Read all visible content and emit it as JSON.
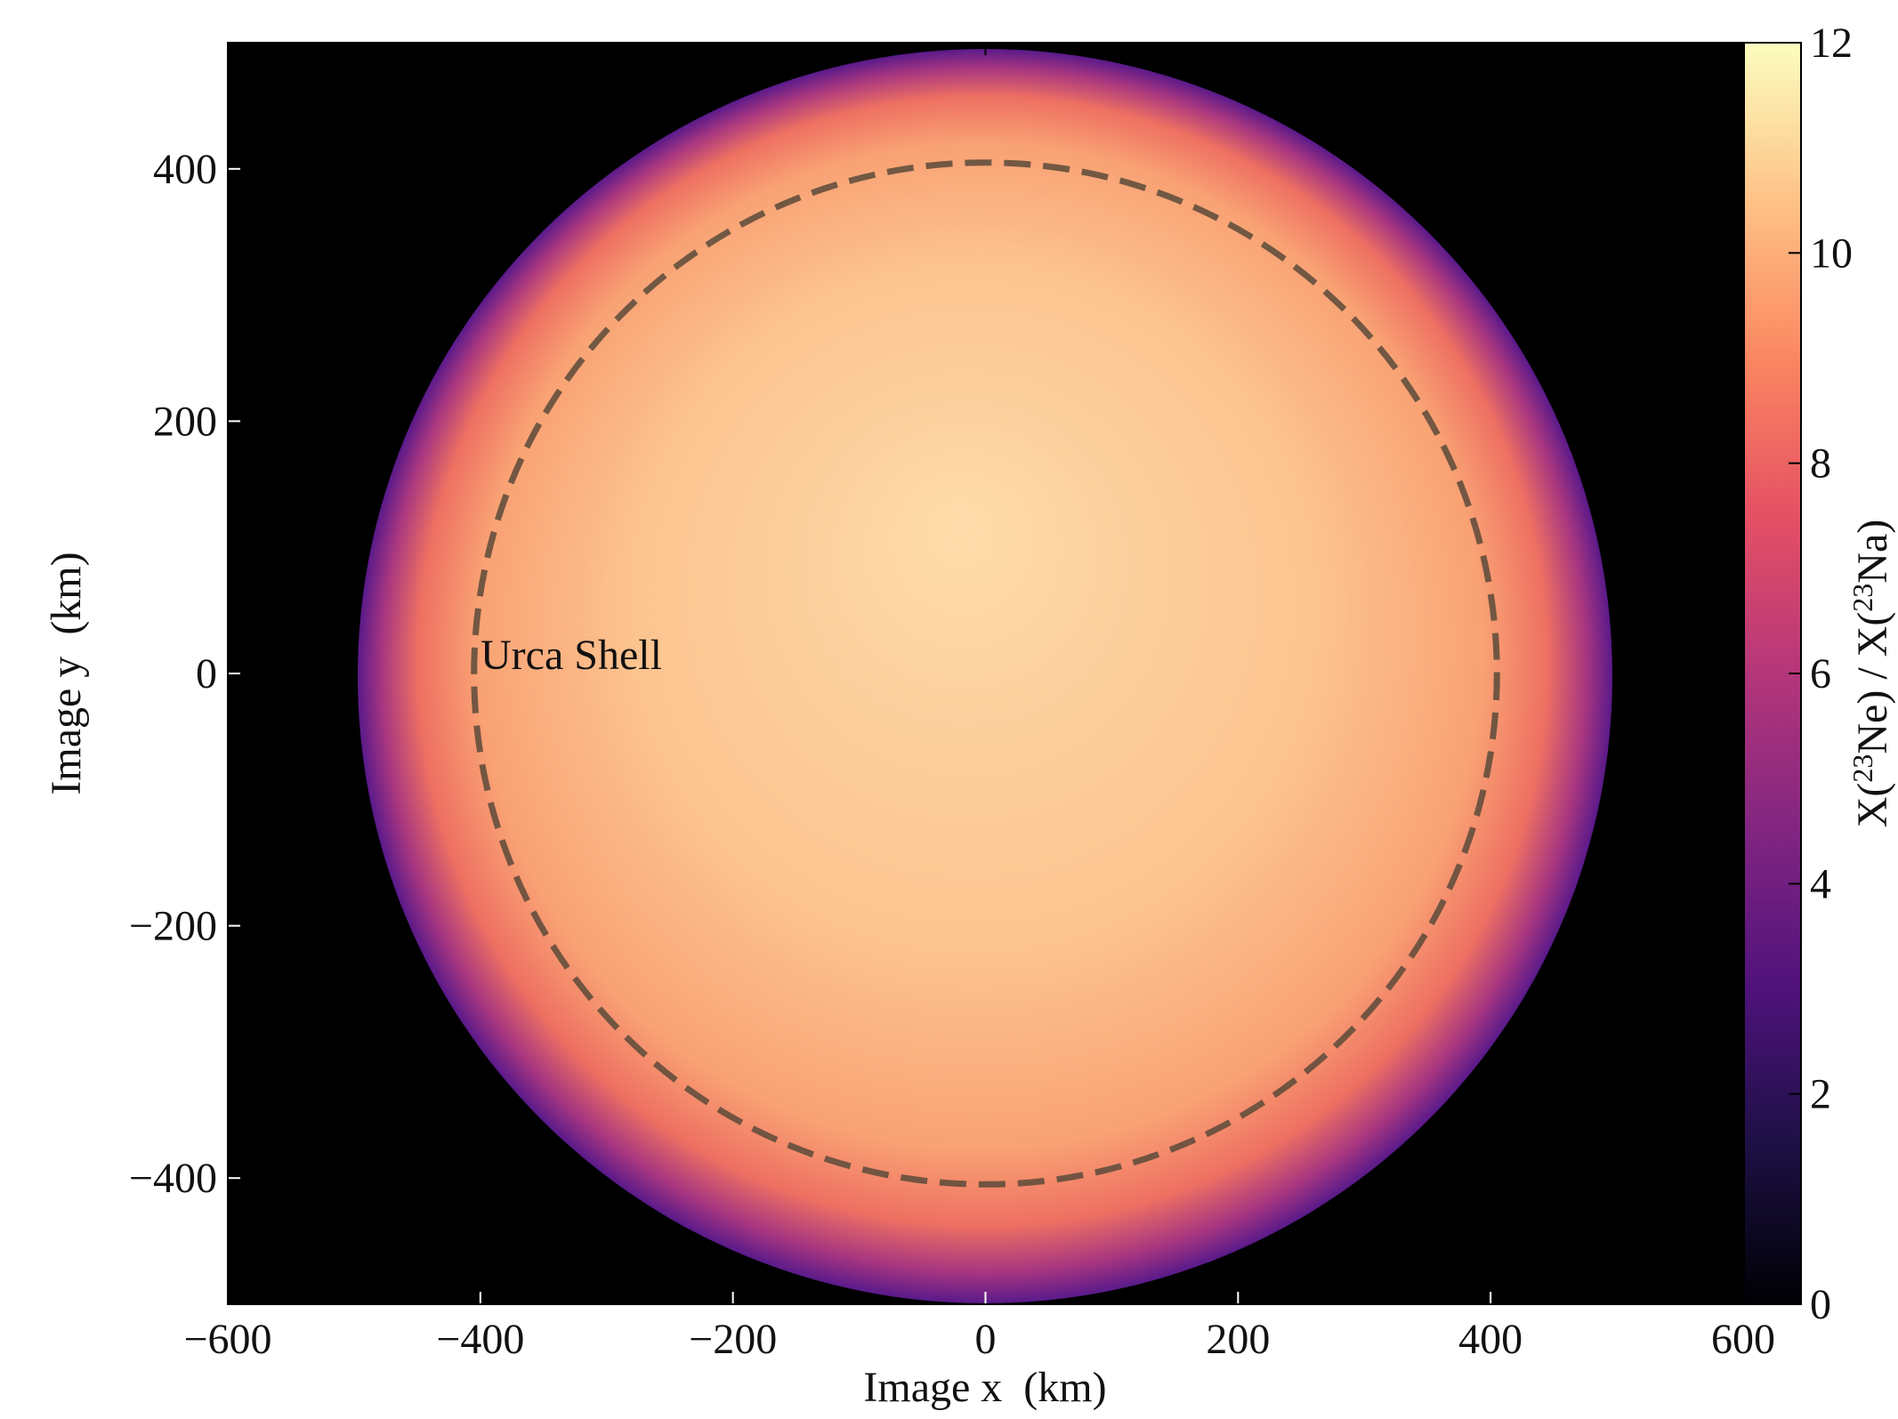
{
  "chart_data": {
    "type": "heatmap",
    "xlabel": "Image x  (km)",
    "ylabel": "Image y  (km)",
    "xlim": [
      -600,
      600
    ],
    "ylim": [
      -500,
      500
    ],
    "xticks": [
      {
        "value": -600,
        "label": "−600"
      },
      {
        "value": -400,
        "label": "−400"
      },
      {
        "value": -200,
        "label": "−200"
      },
      0,
      200,
      400,
      600
    ],
    "yticks": [
      {
        "value": -400,
        "label": "−400"
      },
      {
        "value": -200,
        "label": "−200"
      },
      0,
      200,
      400
    ],
    "colorbar": {
      "label_parts": [
        "X(",
        "23",
        "Ne) / X(",
        "23",
        "Na)"
      ],
      "lim": [
        0,
        12
      ],
      "ticks": [
        0,
        2,
        4,
        6,
        8,
        10,
        12
      ],
      "colors": [
        "#000004",
        "#1c1044",
        "#4f127b",
        "#812581",
        "#b5367a",
        "#e55064",
        "#fb8761",
        "#fec287",
        "#fcfdbf"
      ]
    },
    "annotation": {
      "text": "Urca Shell",
      "shell_radius": 405
    }
  }
}
